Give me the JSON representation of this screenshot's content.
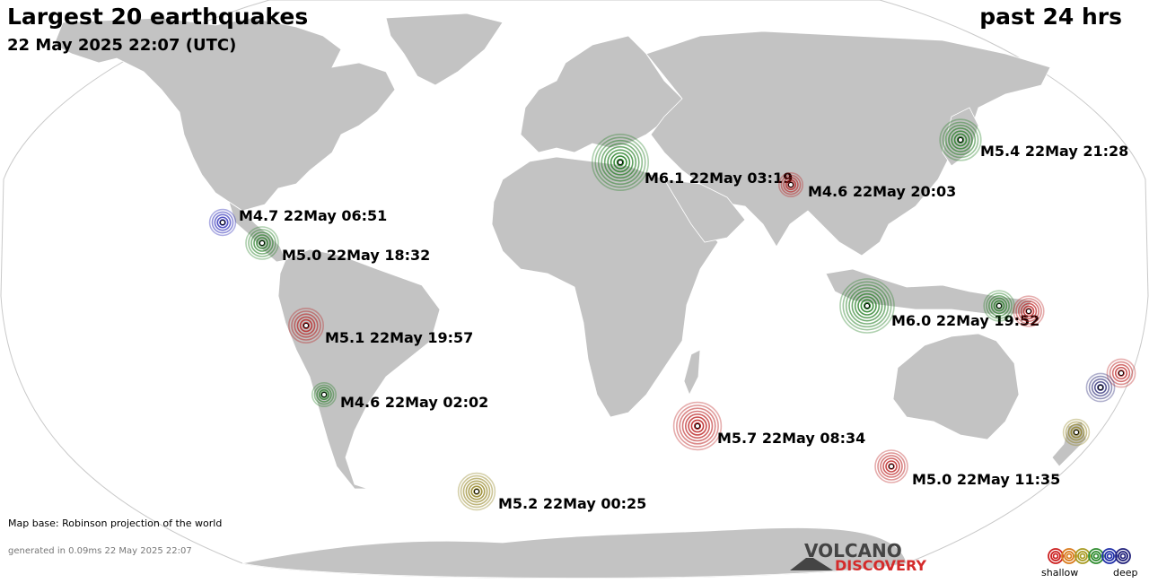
{
  "header": {
    "title": "Largest 20 earthquakes",
    "datetime": "22 May 2025 22:07 (UTC)",
    "period": "past 24 hrs"
  },
  "footer": {
    "map_base": "Map base: Robinson projection of the world",
    "generated": "generated in 0.09ms 22 May 2025 22:07"
  },
  "logo": {
    "line1": "VOLCANO",
    "line2": "DISCOVERY"
  },
  "legend": {
    "shallow_label": "shallow",
    "deep_label": "deep",
    "depth_colors": [
      "#cc1f1f",
      "#d97a1a",
      "#a89b22",
      "#2e8b2e",
      "#1f2fa8",
      "#20207a"
    ]
  },
  "colors": {
    "ocean": "#ffffff",
    "land": "#c3c3c3",
    "border": "#ffffff",
    "red": "#b81818",
    "olive": "#8a7a10",
    "green": "#1d7a1d",
    "blue": "#1818b0",
    "navy": "#202070"
  },
  "earthquakes": [
    {
      "label": "M6.1 22May 03:19",
      "magnitude": 6.1,
      "color": "green"
    },
    {
      "label": "M4.6 22May 20:03",
      "magnitude": 4.6,
      "color": "red"
    },
    {
      "label": "M5.4 22May 21:28",
      "magnitude": 5.4,
      "color": "green"
    },
    {
      "label": "M4.7 22May 06:51",
      "magnitude": 4.7,
      "color": "blue"
    },
    {
      "label": "M5.0 22May 18:32",
      "magnitude": 5.0,
      "color": "green"
    },
    {
      "label": "M5.1 22May 19:57",
      "magnitude": 5.1,
      "color": "red"
    },
    {
      "label": "M4.6 22May 02:02",
      "magnitude": 4.6,
      "color": "green"
    },
    {
      "label": "M6.0 22May 19:52",
      "magnitude": 6.0,
      "color": "green"
    },
    {
      "label": "M5.7 22May 08:34",
      "magnitude": 5.7,
      "color": "red"
    },
    {
      "label": "M5.2 22May 00:25",
      "magnitude": 5.2,
      "color": "olive"
    },
    {
      "label": "M5.0 22May 11:35",
      "magnitude": 5.0,
      "color": "red"
    },
    {
      "label": "",
      "magnitude": 4.9,
      "color": "green"
    },
    {
      "label": "",
      "magnitude": 4.9,
      "color": "red"
    },
    {
      "label": "",
      "magnitude": 4.8,
      "color": "red"
    },
    {
      "label": "",
      "magnitude": 4.8,
      "color": "navy"
    },
    {
      "label": "",
      "magnitude": 4.7,
      "color": "olive"
    }
  ]
}
